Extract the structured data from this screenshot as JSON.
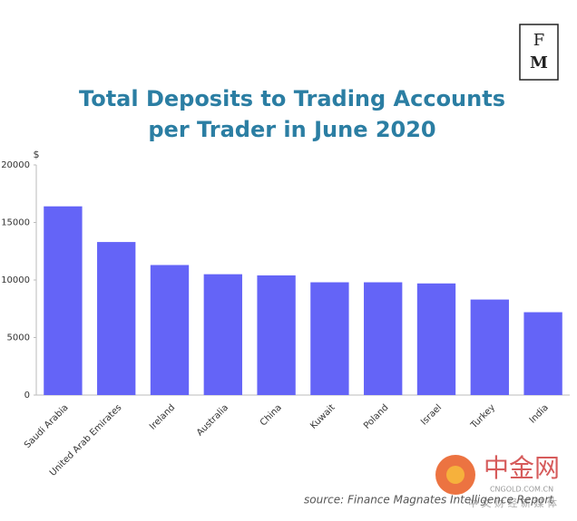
{
  "logo": {
    "top": "F",
    "bottom": "M"
  },
  "chart_data": {
    "type": "bar",
    "title": "Total Deposits to Trading Accounts per Trader in June 2020",
    "y_label": "$",
    "categories": [
      "Saudi Arabia",
      "United Arab Emirates",
      "Ireland",
      "Australia",
      "China",
      "Kuwait",
      "Poland",
      "Israel",
      "Turkey",
      "India"
    ],
    "values": [
      16400,
      13300,
      11300,
      10500,
      10400,
      9800,
      9800,
      9700,
      8300,
      7200
    ],
    "color": "#6464f7",
    "ylim": [
      0,
      20000
    ],
    "yticks": [
      0,
      5000,
      10000,
      15000,
      20000
    ],
    "source": "source: Finance Magnates Intelligence Report"
  },
  "watermark": {
    "name": "中金网",
    "site": "CNGOLD.COM.CN",
    "tagline": "中 文 财 经 新 媒 体"
  }
}
